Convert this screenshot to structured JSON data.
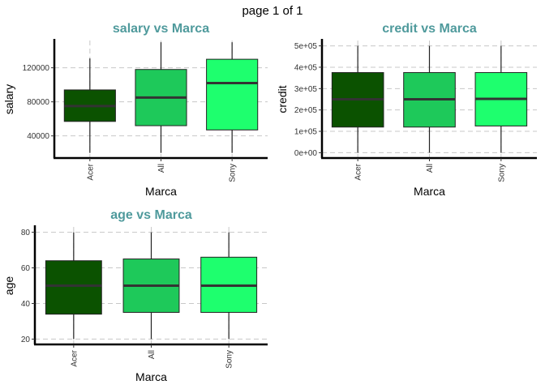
{
  "page_title": "page 1 of 1",
  "colors": {
    "title": "#4f9a9c",
    "grid": "#c8c8c8",
    "box_stroke": "#222222",
    "median": "#333333",
    "axis": "#000000",
    "series_fill": [
      "#0b5200",
      "#1ec95a",
      "#1eff6e"
    ]
  },
  "chart_data": [
    {
      "type": "box",
      "title": "salary vs Marca",
      "xlabel": "Marca",
      "ylabel": "salary",
      "categories": [
        "Acer",
        "All",
        "Sony"
      ],
      "ylim": [
        14000,
        152000
      ],
      "yticks": [
        40000,
        80000,
        120000
      ],
      "ytick_labels": [
        "40000",
        "80000",
        "120000"
      ],
      "grid": true,
      "boxes": [
        {
          "category": "Acer",
          "min": 20000,
          "q1": 57000,
          "median": 75000,
          "q3": 94000,
          "max": 131000
        },
        {
          "category": "All",
          "min": 20000,
          "q1": 52000,
          "median": 85000,
          "q3": 118000,
          "max": 150000
        },
        {
          "category": "Sony",
          "min": 20000,
          "q1": 47000,
          "median": 102000,
          "q3": 130000,
          "max": 150000
        }
      ]
    },
    {
      "type": "box",
      "title": "credit vs Marca",
      "xlabel": "Marca",
      "ylabel": "credit",
      "categories": [
        "Acer",
        "All",
        "Sony"
      ],
      "ylim": [
        -25000,
        525000
      ],
      "yticks": [
        0,
        100000,
        200000,
        300000,
        400000,
        500000
      ],
      "ytick_labels": [
        "0e+00",
        "1e+05",
        "2e+05",
        "3e+05",
        "4e+05",
        "5e+05"
      ],
      "grid": true,
      "boxes": [
        {
          "category": "Acer",
          "min": 0,
          "q1": 120000,
          "median": 250000,
          "q3": 375000,
          "max": 500000
        },
        {
          "category": "All",
          "min": 0,
          "q1": 120000,
          "median": 250000,
          "q3": 375000,
          "max": 500000
        },
        {
          "category": "Sony",
          "min": 0,
          "q1": 125000,
          "median": 252000,
          "q3": 375000,
          "max": 500000
        }
      ]
    },
    {
      "type": "box",
      "title": "age vs Marca",
      "xlabel": "Marca",
      "ylabel": "age",
      "categories": [
        "Acer",
        "All",
        "Sony"
      ],
      "ylim": [
        17,
        83
      ],
      "yticks": [
        20,
        40,
        60,
        80
      ],
      "ytick_labels": [
        "20",
        "40",
        "60",
        "80"
      ],
      "grid": true,
      "boxes": [
        {
          "category": "Acer",
          "min": 20,
          "q1": 34,
          "median": 50,
          "q3": 64,
          "max": 80
        },
        {
          "category": "All",
          "min": 20,
          "q1": 35,
          "median": 50,
          "q3": 65,
          "max": 80
        },
        {
          "category": "Sony",
          "min": 20,
          "q1": 35,
          "median": 50,
          "q3": 66,
          "max": 80
        }
      ]
    }
  ]
}
